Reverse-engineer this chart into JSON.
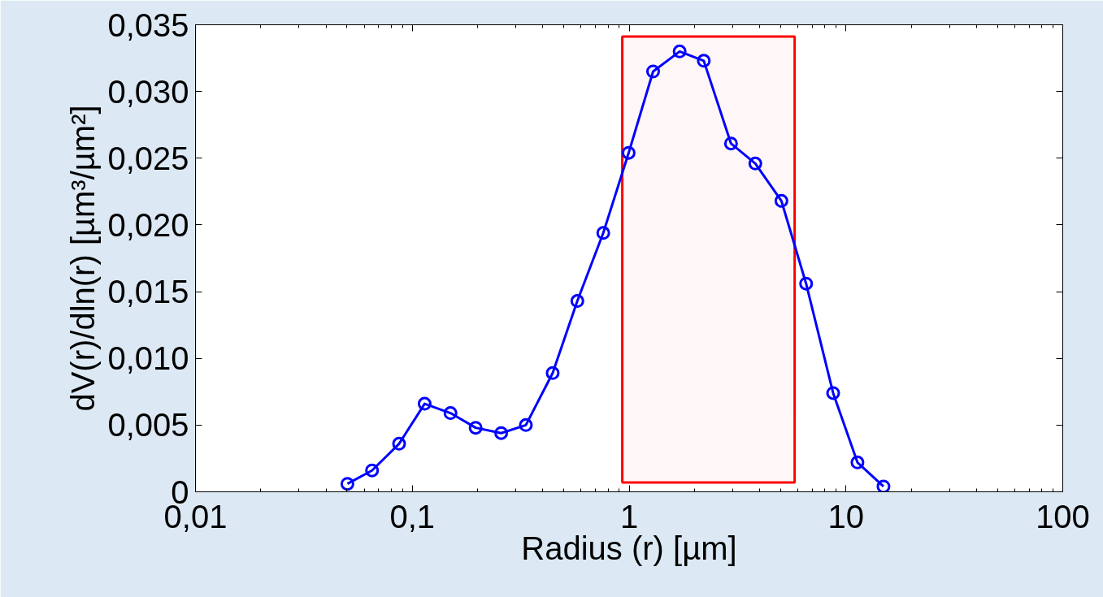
{
  "chart_data": {
    "type": "line",
    "xlabel": "Radius (r) [µm]",
    "ylabel": "dV(r)/dln(r) [µm³/µm²]",
    "x": [
      0.0502,
      0.0652,
      0.0869,
      0.114,
      0.15,
      0.196,
      0.257,
      0.334,
      0.444,
      0.577,
      0.76,
      0.995,
      1.29,
      1.71,
      2.21,
      2.95,
      3.82,
      5.04,
      6.55,
      8.73,
      11.3,
      14.9
    ],
    "series": [
      {
        "color": "#0000ff",
        "values": [
          0.0006,
          0.0016,
          0.0036,
          0.0066,
          0.0059,
          0.0048,
          0.0044,
          0.005,
          0.0089,
          0.0143,
          0.0194,
          0.0254,
          0.0315,
          0.033,
          0.0323,
          0.0261,
          0.0246,
          0.0218,
          0.0156,
          0.0074,
          0.0022,
          0.0004
        ]
      }
    ],
    "marker": "circle",
    "line_style": "solid",
    "log": "x",
    "grid": false,
    "xlim": [
      0.01,
      100
    ],
    "ylim": [
      0,
      0.035
    ],
    "xticks": [
      {
        "value": 0.01,
        "label": "0,01"
      },
      {
        "value": 0.1,
        "label": "0,1"
      },
      1,
      10,
      100
    ],
    "yticks": [
      0,
      {
        "value": 0.005,
        "label": "0,005"
      },
      {
        "value": 0.01,
        "label": "0,010"
      },
      {
        "value": 0.015,
        "label": "0,015"
      },
      {
        "value": 0.02,
        "label": "0,020"
      },
      {
        "value": 0.025,
        "label": "0,025"
      },
      {
        "value": 0.03,
        "label": "0,030"
      },
      {
        "value": 0.035,
        "label": "0,035"
      }
    ],
    "bands": [
      {
        "axis": "x",
        "from": 0.93,
        "to": 5.8,
        "color": "#ff0000"
      }
    ]
  }
}
